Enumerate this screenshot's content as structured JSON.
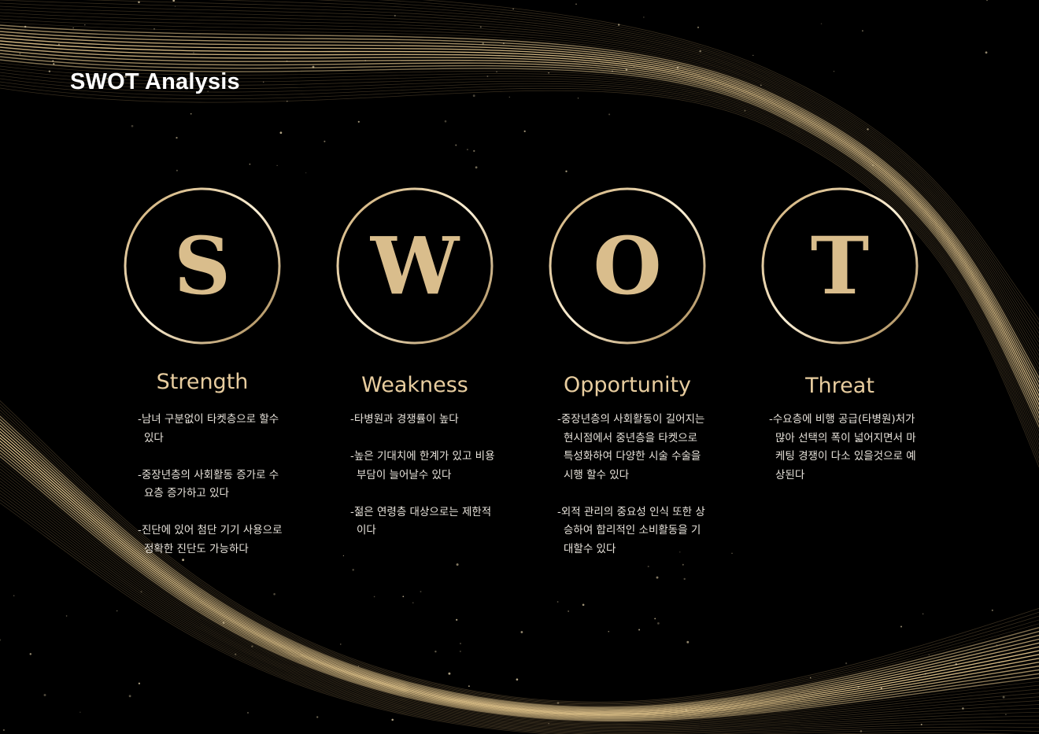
{
  "title": "SWOT Analysis",
  "accent_color": "#d9bd8c",
  "background_color": "#000000",
  "sections": [
    {
      "letter": "S",
      "heading": "Strength",
      "items": [
        "-남녀 구분없이 타켓층으로 할수 있다",
        "-중장년층의 사회활동 증가로 수요층 증가하고 있다",
        "-진단에 있어 첨단 기기 사용으로 정확한 진단도 가능하다"
      ]
    },
    {
      "letter": "W",
      "heading": "Weakness",
      "items": [
        "-타병원과 경쟁률이 높다",
        "-높은 기대치에 한계가 있고 비용부담이 늘어날수 있다",
        "-젊은 연령층 대상으로는 제한적이다"
      ]
    },
    {
      "letter": "O",
      "heading": "Opportunity",
      "items": [
        "-중장년층의 사회활동이 길어지는 현시점에서 중년층을 타켓으로 특성화하여 다양한 시술 수술을 시행 할수 있다",
        "-외적 관리의 중요성 인식 또한 상승하여 합리적인 소비활동을 기대할수 있다"
      ]
    },
    {
      "letter": "T",
      "heading": "Threat",
      "items": [
        "-수요층에 비행 공급(타병원)처가 많아 선택의 폭이 넓어지면서 마케팅 경쟁이 다소 있을것으로 예상된다"
      ]
    }
  ]
}
